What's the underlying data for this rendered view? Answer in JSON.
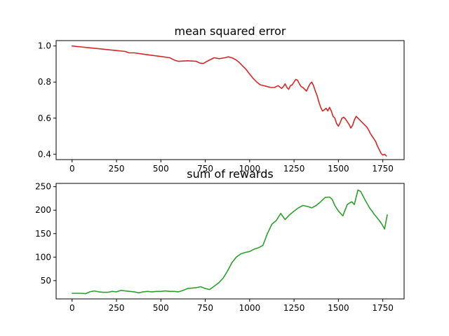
{
  "chart_data": [
    {
      "type": "line",
      "title": "mean squared error",
      "xlabel": "",
      "ylabel": "",
      "xlim": [
        -90,
        1870
      ],
      "ylim": [
        0.37,
        1.03
      ],
      "x_ticks": [
        0,
        250,
        500,
        750,
        1000,
        1250,
        1500,
        1750
      ],
      "x_tick_labels": [
        "0",
        "250",
        "500",
        "750",
        "1000",
        "1250",
        "1500",
        "1750"
      ],
      "y_ticks": [
        0.4,
        0.6,
        0.8,
        1.0
      ],
      "y_tick_labels": [
        "0.4",
        "0.6",
        "0.8",
        "1.0"
      ],
      "grid": false,
      "series": [
        {
          "color": "#d62728",
          "x": [
            0,
            50,
            100,
            150,
            200,
            250,
            300,
            320,
            350,
            400,
            450,
            500,
            550,
            580,
            600,
            650,
            700,
            720,
            740,
            760,
            780,
            800,
            830,
            860,
            880,
            900,
            920,
            940,
            960,
            980,
            1000,
            1020,
            1040,
            1060,
            1080,
            1100,
            1120,
            1140,
            1160,
            1180,
            1190,
            1200,
            1210,
            1220,
            1230,
            1240,
            1250,
            1260,
            1270,
            1280,
            1290,
            1300,
            1310,
            1320,
            1330,
            1340,
            1350,
            1360,
            1370,
            1380,
            1390,
            1400,
            1410,
            1420,
            1430,
            1440,
            1450,
            1460,
            1470,
            1480,
            1490,
            1500,
            1510,
            1520,
            1530,
            1540,
            1550,
            1560,
            1570,
            1580,
            1590,
            1600,
            1610,
            1620,
            1630,
            1640,
            1650,
            1660,
            1670,
            1680,
            1690,
            1700,
            1710,
            1720,
            1730,
            1740,
            1750,
            1760,
            1770
          ],
          "y": [
            1.0,
            0.995,
            0.99,
            0.985,
            0.98,
            0.975,
            0.97,
            0.962,
            0.962,
            0.955,
            0.948,
            0.942,
            0.935,
            0.92,
            0.915,
            0.918,
            0.915,
            0.905,
            0.903,
            0.915,
            0.925,
            0.935,
            0.93,
            0.935,
            0.94,
            0.935,
            0.925,
            0.91,
            0.89,
            0.87,
            0.845,
            0.82,
            0.8,
            0.785,
            0.78,
            0.775,
            0.77,
            0.77,
            0.78,
            0.765,
            0.775,
            0.79,
            0.77,
            0.76,
            0.78,
            0.785,
            0.8,
            0.815,
            0.81,
            0.79,
            0.775,
            0.77,
            0.76,
            0.75,
            0.77,
            0.79,
            0.8,
            0.78,
            0.75,
            0.725,
            0.69,
            0.66,
            0.64,
            0.645,
            0.655,
            0.64,
            0.66,
            0.64,
            0.61,
            0.6,
            0.57,
            0.555,
            0.575,
            0.6,
            0.605,
            0.595,
            0.58,
            0.565,
            0.545,
            0.56,
            0.59,
            0.61,
            0.6,
            0.59,
            0.58,
            0.57,
            0.56,
            0.55,
            0.535,
            0.515,
            0.5,
            0.485,
            0.47,
            0.445,
            0.425,
            0.405,
            0.395,
            0.4,
            0.39
          ]
        }
      ]
    },
    {
      "type": "line",
      "title": "sum of rewards",
      "xlabel": "",
      "ylabel": "",
      "xlim": [
        -90,
        1870
      ],
      "ylim": [
        11,
        257
      ],
      "x_ticks": [
        0,
        250,
        500,
        750,
        1000,
        1250,
        1500,
        1750
      ],
      "x_tick_labels": [
        "0",
        "250",
        "500",
        "750",
        "1000",
        "1250",
        "1500",
        "1750"
      ],
      "y_ticks": [
        50,
        100,
        150,
        200,
        250
      ],
      "y_tick_labels": [
        "50",
        "100",
        "150",
        "200",
        "250"
      ],
      "grid": false,
      "series": [
        {
          "color": "#2ca02c",
          "x": [
            0,
            25,
            50,
            75,
            100,
            125,
            150,
            175,
            200,
            225,
            250,
            275,
            300,
            325,
            350,
            375,
            400,
            425,
            450,
            475,
            500,
            525,
            550,
            575,
            600,
            625,
            650,
            675,
            700,
            725,
            750,
            775,
            800,
            825,
            850,
            875,
            900,
            925,
            950,
            975,
            1000,
            1025,
            1050,
            1075,
            1100,
            1125,
            1150,
            1175,
            1200,
            1225,
            1250,
            1275,
            1300,
            1325,
            1350,
            1375,
            1400,
            1425,
            1450,
            1465,
            1480,
            1500,
            1525,
            1550,
            1575,
            1590,
            1600,
            1610,
            1625,
            1650,
            1675,
            1690,
            1700,
            1715,
            1730,
            1745,
            1760,
            1775
          ],
          "y": [
            23,
            23,
            23,
            22,
            26,
            28,
            26,
            25,
            25,
            27,
            26,
            29,
            28,
            27,
            26,
            24,
            26,
            27,
            26,
            27,
            27,
            28,
            27,
            27,
            26,
            29,
            33,
            34,
            35,
            37,
            33,
            31,
            38,
            45,
            55,
            70,
            88,
            100,
            107,
            110,
            112,
            117,
            120,
            125,
            150,
            170,
            178,
            193,
            180,
            190,
            198,
            205,
            210,
            208,
            205,
            210,
            218,
            227,
            228,
            223,
            210,
            198,
            188,
            212,
            218,
            212,
            228,
            243,
            240,
            222,
            205,
            198,
            192,
            185,
            178,
            170,
            160,
            190
          ]
        }
      ]
    }
  ]
}
